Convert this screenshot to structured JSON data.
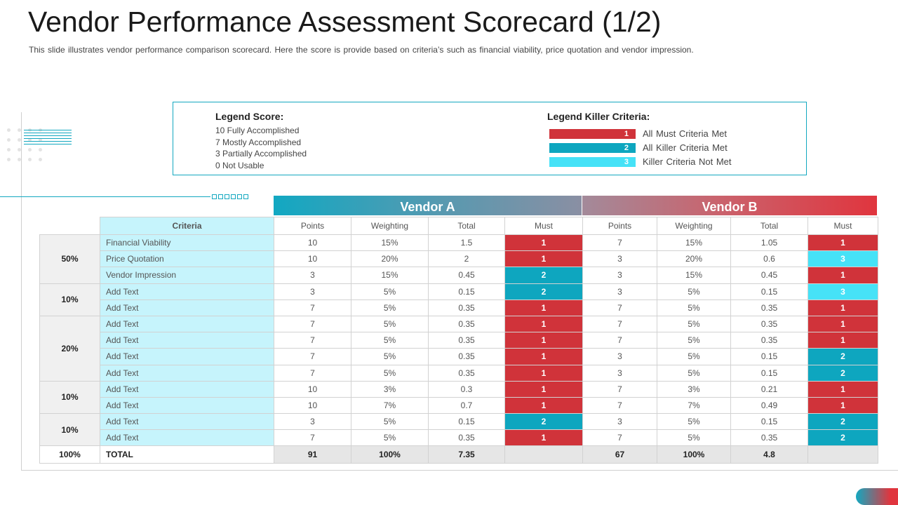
{
  "page": {
    "title": "Vendor Performance Assessment Scorecard (1/2)",
    "subtitle": "This slide illustrates vendor performance comparison scorecard. Here the score is provide  based on criteria’s such as financial viability, price quotation  and vendor impression."
  },
  "colors": {
    "accent": "#13a8c0",
    "must_1": "#d0333a",
    "must_2": "#0ea6bf",
    "must_3": "#46e2f7",
    "criteria_bg": "#c6f4fc"
  },
  "legend_score": {
    "title": "Legend Score:",
    "items": [
      "10 Fully Accomplished",
      "7 Mostly Accomplished",
      "3 Partially Accomplished",
      "0 Not Usable"
    ]
  },
  "legend_killer": {
    "title": "Legend Killer Criteria:",
    "items": [
      {
        "code": "1",
        "label": "All Must Criteria  Met"
      },
      {
        "code": "2",
        "label": "All Killer Criteria  Met"
      },
      {
        "code": "3",
        "label": "Killer Criteria  Not Met"
      }
    ]
  },
  "table": {
    "vendor_a": "Vendor A",
    "vendor_b": "Vendor B",
    "criteria_header": "Criteria",
    "columns": [
      "Points",
      "Weighting",
      "Total",
      "Must"
    ],
    "rows": [
      {
        "criteria": "Financial Viability",
        "a": [
          "10",
          "15%",
          "1.5",
          "1"
        ],
        "b": [
          "7",
          "15%",
          "1.05",
          "1"
        ]
      },
      {
        "criteria": "Price Quotation",
        "a": [
          "10",
          "20%",
          "2",
          "1"
        ],
        "b": [
          "3",
          "20%",
          "0.6",
          "3"
        ]
      },
      {
        "criteria": "Vendor Impression",
        "a": [
          "3",
          "15%",
          "0.45",
          "2"
        ],
        "b": [
          "3",
          "15%",
          "0.45",
          "1"
        ]
      },
      {
        "criteria": "Add Text",
        "a": [
          "3",
          "5%",
          "0.15",
          "2"
        ],
        "b": [
          "3",
          "5%",
          "0.15",
          "3"
        ]
      },
      {
        "criteria": "Add Text",
        "a": [
          "7",
          "5%",
          "0.35",
          "1"
        ],
        "b": [
          "7",
          "5%",
          "0.35",
          "1"
        ]
      },
      {
        "criteria": "Add Text",
        "a": [
          "7",
          "5%",
          "0.35",
          "1"
        ],
        "b": [
          "7",
          "5%",
          "0.35",
          "1"
        ]
      },
      {
        "criteria": "Add Text",
        "a": [
          "7",
          "5%",
          "0.35",
          "1"
        ],
        "b": [
          "7",
          "5%",
          "0.35",
          "1"
        ]
      },
      {
        "criteria": "Add Text",
        "a": [
          "7",
          "5%",
          "0.35",
          "1"
        ],
        "b": [
          "3",
          "5%",
          "0.15",
          "2"
        ]
      },
      {
        "criteria": "Add Text",
        "a": [
          "7",
          "5%",
          "0.35",
          "1"
        ],
        "b": [
          "3",
          "5%",
          "0.15",
          "2"
        ]
      },
      {
        "criteria": "Add Text",
        "a": [
          "10",
          "3%",
          "0.3",
          "1"
        ],
        "b": [
          "7",
          "3%",
          "0.21",
          "1"
        ]
      },
      {
        "criteria": "Add Text",
        "a": [
          "10",
          "7%",
          "0.7",
          "1"
        ],
        "b": [
          "7",
          "7%",
          "0.49",
          "1"
        ]
      },
      {
        "criteria": "Add Text",
        "a": [
          "3",
          "5%",
          "0.15",
          "2"
        ],
        "b": [
          "3",
          "5%",
          "0.15",
          "2"
        ]
      },
      {
        "criteria": "Add Text",
        "a": [
          "7",
          "5%",
          "0.35",
          "1"
        ],
        "b": [
          "7",
          "5%",
          "0.35",
          "2"
        ]
      }
    ],
    "groups": [
      {
        "label": "50%",
        "span": 3
      },
      {
        "label": "10%",
        "span": 2
      },
      {
        "label": "20%",
        "span": 4
      },
      {
        "label": "10%",
        "span": 2
      },
      {
        "label": "10%",
        "span": 2
      }
    ],
    "total": {
      "pct": "100%",
      "label": "TOTAL",
      "a": [
        "91",
        "100%",
        "7.35",
        ""
      ],
      "b": [
        "67",
        "100%",
        "4.8",
        ""
      ]
    }
  }
}
